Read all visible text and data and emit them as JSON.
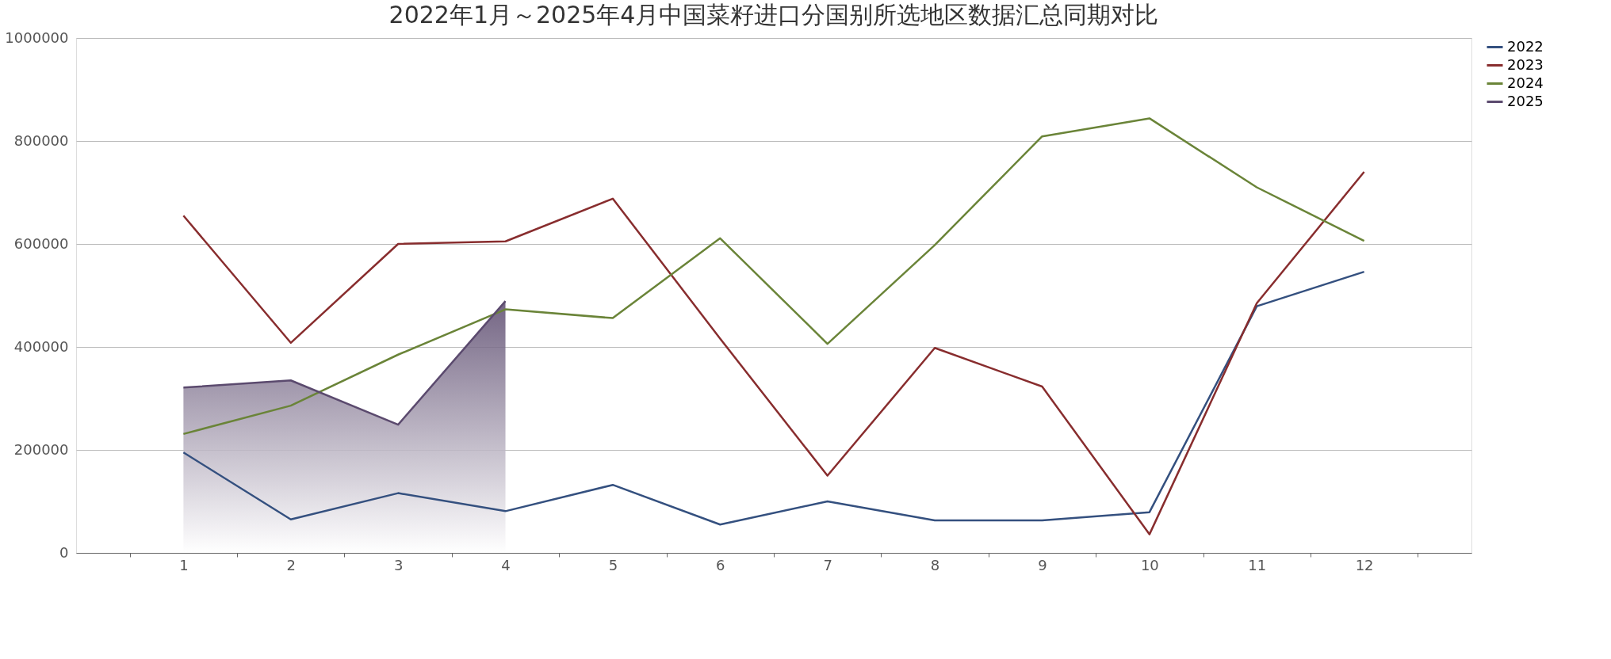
{
  "chart_data": {
    "type": "line",
    "title": "2022年1月～2025年4月中国菜籽进口分国别所选地区数据汇总同期对比",
    "categories": [
      "1",
      "2",
      "3",
      "4",
      "5",
      "6",
      "7",
      "8",
      "9",
      "10",
      "11",
      "12"
    ],
    "series": [
      {
        "name": "2022",
        "color": "#34507f",
        "values": [
          195000,
          65000,
          116000,
          81000,
          132000,
          55000,
          100000,
          63000,
          63000,
          79000,
          479000,
          546000
        ]
      },
      {
        "name": "2023",
        "color": "#882d2e",
        "values": [
          655000,
          408000,
          600000,
          605000,
          688000,
          416000,
          150000,
          398000,
          323000,
          36000,
          485000,
          740000
        ]
      },
      {
        "name": "2024",
        "color": "#6a8438",
        "values": [
          231000,
          286000,
          385000,
          473000,
          456000,
          611000,
          406000,
          598000,
          809000,
          844000,
          710000,
          606000
        ]
      },
      {
        "name": "2025",
        "color": "#5b4a6e",
        "type": "area",
        "values": [
          321000,
          335000,
          249000,
          489000,
          null,
          null,
          null,
          null,
          null,
          null,
          null,
          null
        ]
      }
    ],
    "ylim": [
      0,
      1000000
    ],
    "yticks": [
      0,
      200000,
      400000,
      600000,
      800000,
      1000000
    ],
    "grid": "y",
    "legend": "right",
    "marker": "none",
    "line_style": "solid"
  }
}
